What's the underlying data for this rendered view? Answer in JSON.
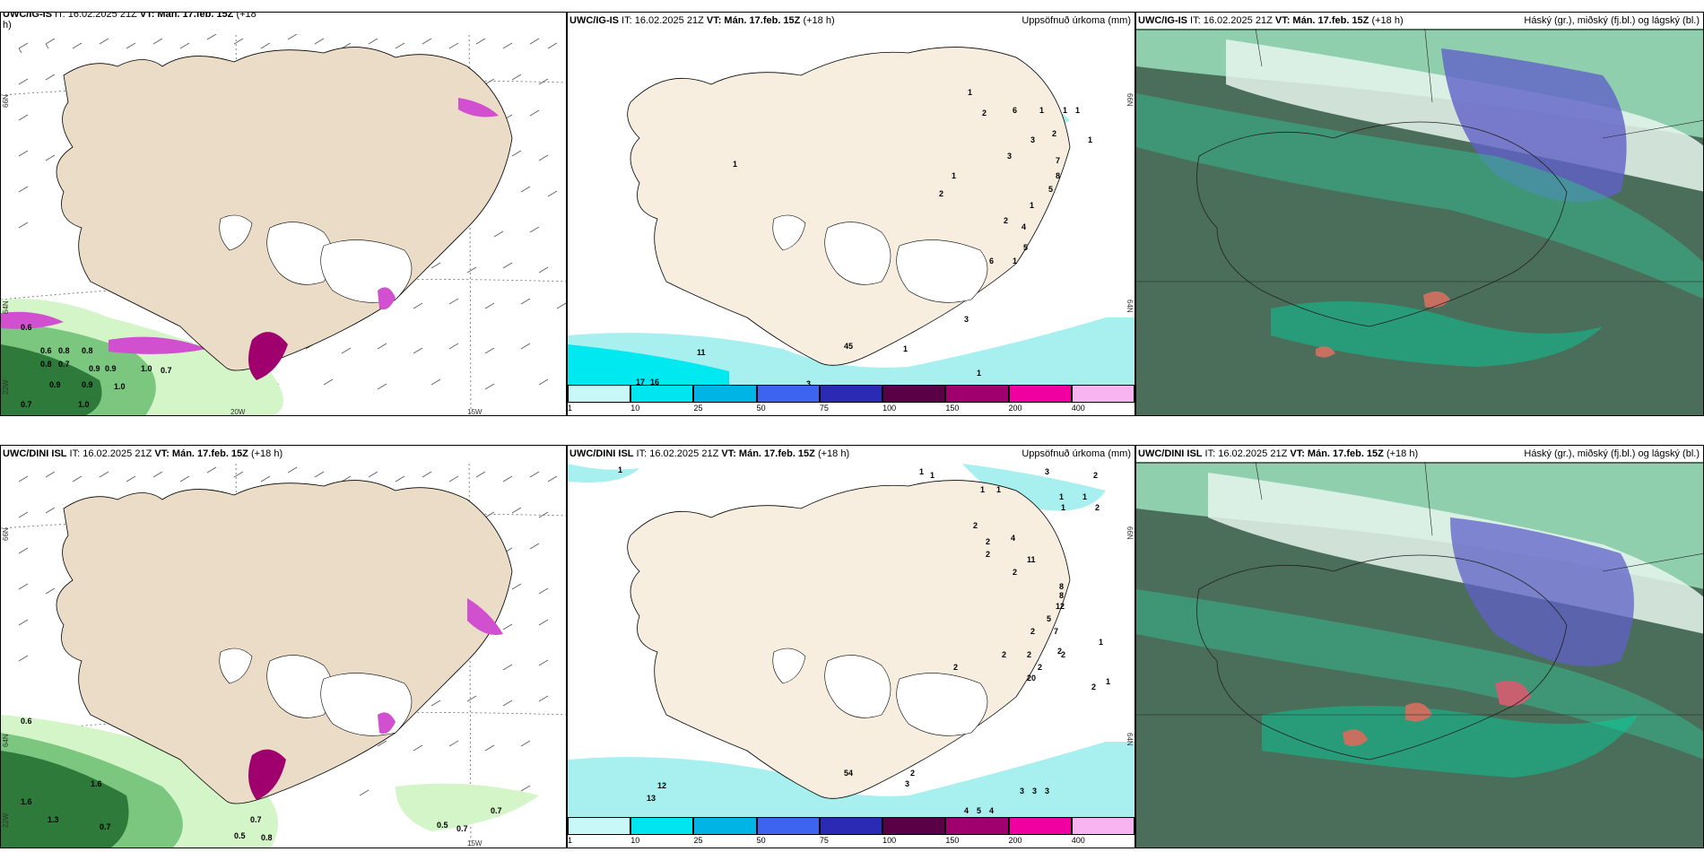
{
  "panels": {
    "p1": {
      "header_model": "UWC/IG-IS",
      "header_it": " IT: 16.02.2025 21Z ",
      "header_vt": "VT: Mán. 17.feb. 15Z",
      "header_lead": " (+18",
      "header_wrap": "h)",
      "lat_labels": [
        "66N",
        "64N",
        "22W"
      ],
      "lon_labels": [
        "20W",
        "15W"
      ],
      "values": [
        "0.6",
        "0.6",
        "0.8",
        "0.7",
        "0.8",
        "0.8",
        "0.9",
        "0.9",
        "1.0",
        "0.7",
        "0.9",
        "0.9",
        "1.0",
        "0.7",
        "1.0"
      ]
    },
    "p2": {
      "header_model": "UWC/IG-IS",
      "header_it": " IT: 16.02.2025 21Z ",
      "header_vt": "VT: Mán. 17.feb. 15Z",
      "header_lead": " (+18 h)",
      "header_right": "Uppsöfnuð úrkoma (mm)",
      "lat_labels": [
        "66N",
        "64N"
      ],
      "values": [
        "1",
        "2",
        "6",
        "1",
        "1",
        "1",
        "3",
        "1",
        "2",
        "3",
        "7",
        "8",
        "5",
        "1",
        "2",
        "1",
        "2",
        "4",
        "5",
        "6",
        "1",
        "1",
        "11",
        "17",
        "16",
        "3",
        "3",
        "45",
        "1",
        "1"
      ]
    },
    "p3": {
      "header_model": "UWC/IG-IS",
      "header_it": " IT: 16.02.2025 21Z ",
      "header_vt": "VT: Mán. 17.feb. 15Z",
      "header_lead": " (+18 h)",
      "header_right": "Háský (gr.), miðský (fj.bl.) og lágský (bl.)"
    },
    "p4": {
      "header_model": "UWC/DINI ISL",
      "header_it": " IT: 16.02.2025 21Z ",
      "header_vt": "VT: Mán. 17.feb. 15Z",
      "header_lead": " (+18 h)",
      "lat_labels": [
        "66N",
        "64N",
        "22W"
      ],
      "lon_labels": [
        "15W"
      ],
      "values": [
        "0.6",
        "1.6",
        "1.6",
        "1.3",
        "0.7",
        "0.5",
        "0.8",
        "0.7",
        "0.5",
        "0.7",
        "0.7"
      ]
    },
    "p5": {
      "header_model": "UWC/DINI ISL",
      "header_it": " IT: 16.02.2025 21Z ",
      "header_vt": "VT: Mán. 17.feb. 15Z",
      "header_lead": " (+18 h)",
      "header_right": "Uppsöfnuð úrkoma (mm)",
      "lat_labels": [
        "66N",
        "64N"
      ],
      "values": [
        "1",
        "1",
        "1",
        "3",
        "2",
        "1",
        "1",
        "1",
        "1",
        "2",
        "1",
        "2",
        "2",
        "4",
        "11",
        "2",
        "2",
        "8",
        "8",
        "12",
        "5",
        "7",
        "2",
        "1",
        "2",
        "2",
        "2",
        "2",
        "2",
        "20",
        "2",
        "1",
        "2",
        "12",
        "13",
        "3",
        "3",
        "3",
        "4",
        "5",
        "4",
        "3",
        "2",
        "54"
      ]
    },
    "p6": {
      "header_model": "UWC/DINI ISL",
      "header_it": " IT: 16.02.2025 21Z ",
      "header_vt": "VT: Mán. 17.feb. 15Z",
      "header_lead": " (+18 h)",
      "header_right": "Háský (gr.), miðský (fj.bl.) og lágský (bl.)"
    }
  },
  "colorbar": {
    "labels": [
      "1",
      "10",
      "25",
      "50",
      "75",
      "100",
      "150",
      "200",
      "400"
    ],
    "colors": [
      "#c8f8f8",
      "#00e6f0",
      "#00b4e6",
      "#3c64f0",
      "#2a2ab4",
      "#5a0046",
      "#a0006e",
      "#f000a0",
      "#f8b4f0"
    ]
  },
  "colors": {
    "land": "#f7eee0",
    "land_dark": "#e8dccb",
    "precip_light": "#a8f0f0",
    "precip_cyan": "#00e8f0",
    "wind_snow": "#d4f5c8",
    "green_dark": "#2d7a3a",
    "magenta": "#d050d0"
  }
}
